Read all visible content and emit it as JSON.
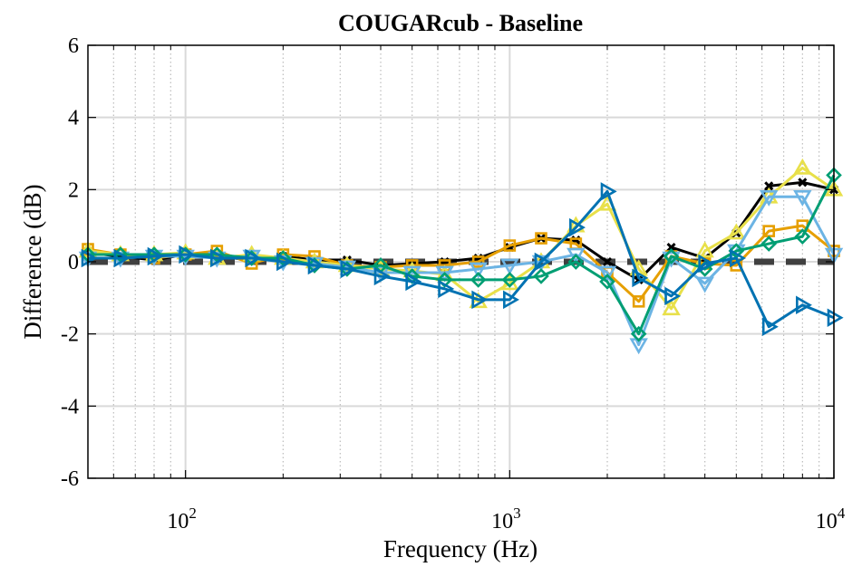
{
  "chart_data": {
    "type": "line",
    "title": "COUGARcub - Baseline",
    "xlabel": "Frequency (Hz)",
    "ylabel": "Difference (dB)",
    "xscale": "log",
    "xlim": [
      50,
      10000
    ],
    "ylim": [
      -6,
      6
    ],
    "grid": true,
    "legend": "none",
    "x_ticks": [
      {
        "value": 100,
        "base": "10",
        "exp": "2"
      },
      {
        "value": 1000,
        "base": "10",
        "exp": "3"
      },
      {
        "value": 10000,
        "base": "10",
        "exp": "4"
      }
    ],
    "y_ticks": [
      {
        "value": -6,
        "label": "-6"
      },
      {
        "value": -4,
        "label": "-4"
      },
      {
        "value": -2,
        "label": "-2"
      },
      {
        "value": 0,
        "label": "0"
      },
      {
        "value": 2,
        "label": "2"
      },
      {
        "value": 4,
        "label": "4"
      },
      {
        "value": 6,
        "label": "6"
      }
    ],
    "x": [
      50,
      63,
      80,
      100,
      125,
      160,
      200,
      250,
      315,
      400,
      500,
      630,
      800,
      1000,
      1250,
      1600,
      2000,
      2500,
      3150,
      4000,
      5000,
      6300,
      8000,
      10000
    ],
    "baseline": {
      "color": "#404040",
      "values": [
        0,
        0,
        0,
        0,
        0,
        0,
        0,
        0,
        0,
        0,
        0,
        0,
        0,
        0,
        0,
        0,
        0,
        0,
        0,
        0,
        0,
        0,
        0,
        0
      ]
    },
    "series": [
      {
        "color": "#000000",
        "marker": "x",
        "values": [
          0.25,
          0.15,
          0.05,
          0.2,
          0.15,
          0.05,
          0.15,
          0.05,
          0.05,
          -0.1,
          -0.05,
          0.0,
          0.1,
          0.4,
          0.65,
          0.6,
          0.0,
          -0.5,
          0.4,
          0.1,
          0.8,
          2.1,
          2.2,
          2.0
        ]
      },
      {
        "color": "#E69F00",
        "marker": "square",
        "values": [
          0.35,
          0.2,
          0.1,
          0.2,
          0.3,
          -0.05,
          0.2,
          0.15,
          -0.1,
          -0.15,
          -0.1,
          -0.1,
          0.0,
          0.45,
          0.65,
          0.5,
          -0.3,
          -1.1,
          0.15,
          -0.05,
          -0.1,
          0.85,
          1.0,
          0.3
        ]
      },
      {
        "color": "#E8E04A",
        "marker": "triangle-up",
        "values": [
          0.3,
          0.2,
          0.2,
          0.25,
          0.1,
          0.2,
          0.1,
          0.0,
          -0.1,
          -0.2,
          -0.25,
          -0.35,
          -1.1,
          -0.6,
          0.0,
          1.0,
          1.6,
          -0.2,
          -1.3,
          0.3,
          0.8,
          1.8,
          2.6,
          2.0
        ]
      },
      {
        "color": "#6CB4E4",
        "marker": "triangle-down",
        "values": [
          0.1,
          0.1,
          0.15,
          0.15,
          0.1,
          0.15,
          0.0,
          -0.05,
          -0.15,
          -0.3,
          -0.3,
          -0.3,
          -0.2,
          -0.1,
          0.0,
          0.2,
          -0.3,
          -2.3,
          0.1,
          -0.6,
          0.3,
          1.8,
          1.8,
          0.2
        ]
      },
      {
        "color": "#009E73",
        "marker": "diamond",
        "values": [
          0.2,
          0.2,
          0.2,
          0.2,
          0.2,
          0.1,
          0.1,
          -0.1,
          -0.2,
          -0.1,
          -0.4,
          -0.5,
          -0.5,
          -0.5,
          -0.4,
          0.0,
          -0.55,
          -2.0,
          0.15,
          -0.2,
          0.3,
          0.5,
          0.7,
          2.4
        ]
      },
      {
        "color": "#0072B2",
        "marker": "triangle-right",
        "values": [
          0.1,
          0.1,
          0.15,
          0.2,
          0.1,
          0.1,
          0.0,
          -0.1,
          -0.2,
          -0.4,
          -0.55,
          -0.75,
          -1.05,
          -1.05,
          0.0,
          0.95,
          1.95,
          -0.45,
          -0.95,
          -0.05,
          0.1,
          -1.8,
          -1.2,
          -1.55
        ]
      }
    ]
  }
}
